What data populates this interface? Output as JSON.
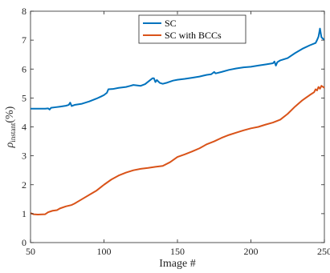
{
  "chart_data": {
    "type": "line",
    "xlabel": "Image #",
    "ylabel_main": "ρ",
    "ylabel_sub": "instant",
    "ylabel_unit": "(%)",
    "xlim": [
      50,
      250
    ],
    "ylim": [
      0,
      8
    ],
    "xticks": [
      50,
      100,
      150,
      200,
      250
    ],
    "yticks": [
      0,
      1,
      2,
      3,
      4,
      5,
      6,
      7,
      8
    ],
    "xtick_labels": [
      "50",
      "100",
      "150",
      "200",
      "250"
    ],
    "ytick_labels": [
      "0",
      "1",
      "2",
      "3",
      "4",
      "5",
      "6",
      "7",
      "8"
    ],
    "grid": false,
    "legend_position": "top-center",
    "series": [
      {
        "name": "SC",
        "color": "#0072BD",
        "points": [
          [
            50,
            4.63
          ],
          [
            55,
            4.63
          ],
          [
            60,
            4.63
          ],
          [
            62,
            4.64
          ],
          [
            63,
            4.6
          ],
          [
            64,
            4.66
          ],
          [
            67,
            4.68
          ],
          [
            70,
            4.7
          ],
          [
            74,
            4.73
          ],
          [
            76,
            4.76
          ],
          [
            77,
            4.84
          ],
          [
            78,
            4.72
          ],
          [
            80,
            4.76
          ],
          [
            85,
            4.8
          ],
          [
            90,
            4.88
          ],
          [
            95,
            4.98
          ],
          [
            98,
            5.05
          ],
          [
            100,
            5.1
          ],
          [
            102,
            5.18
          ],
          [
            103,
            5.3
          ],
          [
            106,
            5.31
          ],
          [
            110,
            5.35
          ],
          [
            115,
            5.38
          ],
          [
            118,
            5.42
          ],
          [
            120,
            5.45
          ],
          [
            125,
            5.42
          ],
          [
            128,
            5.48
          ],
          [
            131,
            5.6
          ],
          [
            133,
            5.68
          ],
          [
            134,
            5.68
          ],
          [
            135,
            5.55
          ],
          [
            136,
            5.62
          ],
          [
            138,
            5.52
          ],
          [
            140,
            5.49
          ],
          [
            143,
            5.53
          ],
          [
            147,
            5.6
          ],
          [
            150,
            5.63
          ],
          [
            155,
            5.66
          ],
          [
            160,
            5.7
          ],
          [
            165,
            5.74
          ],
          [
            170,
            5.8
          ],
          [
            173,
            5.82
          ],
          [
            175,
            5.9
          ],
          [
            176,
            5.85
          ],
          [
            180,
            5.9
          ],
          [
            185,
            5.97
          ],
          [
            190,
            6.02
          ],
          [
            195,
            6.06
          ],
          [
            200,
            6.08
          ],
          [
            205,
            6.12
          ],
          [
            210,
            6.16
          ],
          [
            215,
            6.2
          ],
          [
            216,
            6.26
          ],
          [
            217,
            6.12
          ],
          [
            218,
            6.24
          ],
          [
            220,
            6.3
          ],
          [
            225,
            6.38
          ],
          [
            230,
            6.55
          ],
          [
            235,
            6.7
          ],
          [
            240,
            6.82
          ],
          [
            244,
            6.9
          ],
          [
            245,
            7.0
          ],
          [
            246,
            7.12
          ],
          [
            247,
            7.4
          ],
          [
            248,
            7.1
          ],
          [
            249,
            7.05
          ],
          [
            250,
            7.02
          ]
        ]
      },
      {
        "name": "SC with BCCs",
        "color": "#D95319",
        "points": [
          [
            50,
            1.02
          ],
          [
            52,
            0.98
          ],
          [
            55,
            0.97
          ],
          [
            60,
            0.98
          ],
          [
            62,
            1.05
          ],
          [
            65,
            1.1
          ],
          [
            68,
            1.12
          ],
          [
            70,
            1.18
          ],
          [
            74,
            1.25
          ],
          [
            78,
            1.3
          ],
          [
            80,
            1.35
          ],
          [
            85,
            1.5
          ],
          [
            90,
            1.65
          ],
          [
            95,
            1.8
          ],
          [
            100,
            2.0
          ],
          [
            105,
            2.18
          ],
          [
            110,
            2.32
          ],
          [
            115,
            2.42
          ],
          [
            120,
            2.5
          ],
          [
            125,
            2.55
          ],
          [
            130,
            2.58
          ],
          [
            135,
            2.62
          ],
          [
            140,
            2.65
          ],
          [
            145,
            2.78
          ],
          [
            150,
            2.96
          ],
          [
            155,
            3.05
          ],
          [
            160,
            3.15
          ],
          [
            165,
            3.26
          ],
          [
            170,
            3.4
          ],
          [
            175,
            3.5
          ],
          [
            180,
            3.62
          ],
          [
            185,
            3.72
          ],
          [
            190,
            3.8
          ],
          [
            195,
            3.88
          ],
          [
            200,
            3.95
          ],
          [
            205,
            4.0
          ],
          [
            210,
            4.08
          ],
          [
            215,
            4.15
          ],
          [
            220,
            4.25
          ],
          [
            225,
            4.45
          ],
          [
            230,
            4.7
          ],
          [
            235,
            4.92
          ],
          [
            240,
            5.1
          ],
          [
            243,
            5.2
          ],
          [
            244,
            5.3
          ],
          [
            245,
            5.26
          ],
          [
            246,
            5.38
          ],
          [
            247,
            5.32
          ],
          [
            248,
            5.42
          ],
          [
            250,
            5.35
          ]
        ]
      }
    ]
  }
}
